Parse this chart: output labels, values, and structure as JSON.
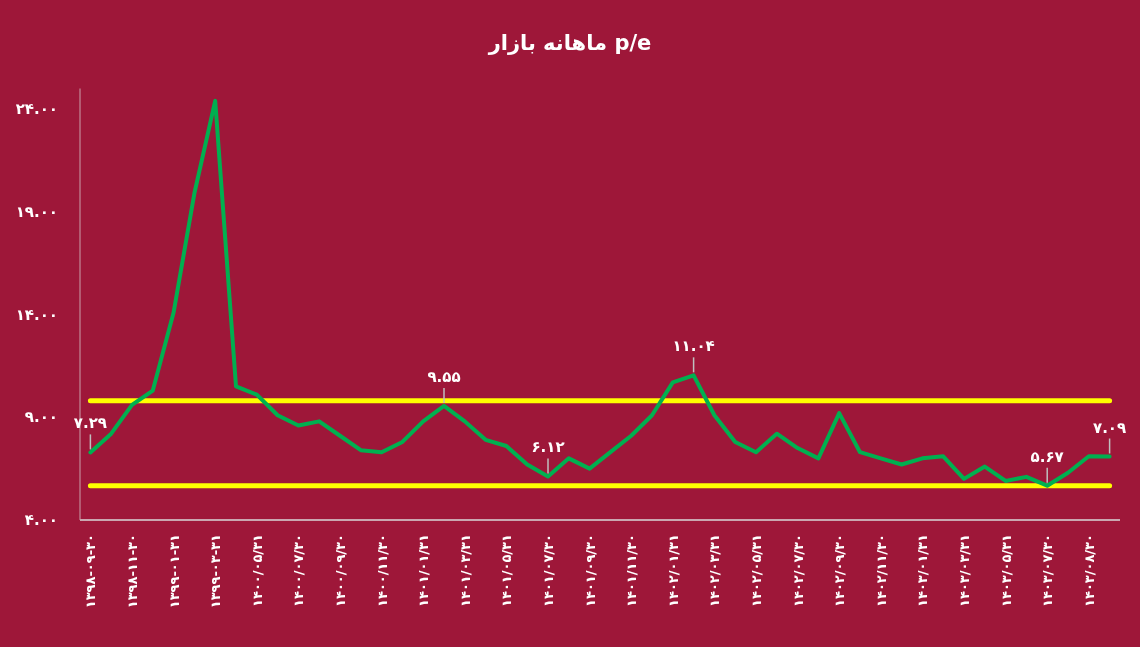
{
  "chart_data": {
    "type": "line",
    "title": "p/e ماهانه بازار",
    "categories": [
      "۱۳۹۸-۰۹-۳۰",
      null,
      "۱۳۹۸-۱۱-۳۰",
      null,
      "۱۳۹۹-۰۱-۳۱",
      null,
      "۱۳۹۹-۰۳-۳۱",
      null,
      "۱۴۰۰/۰۵/۳۱",
      null,
      "۱۴۰۰/۰۷/۳۰",
      null,
      "۱۴۰۰/۰۹/۳۰",
      null,
      "۱۴۰۰/۱۱/۳۰",
      null,
      "۱۴۰۱/۰۱/۳۱",
      null,
      "۱۴۰۱/۰۳/۳۱",
      null,
      "۱۴۰۱/۰۵/۳۱",
      null,
      "۱۴۰۱/۰۷/۳۰",
      null,
      "۱۴۰۱/۰۹/۳۰",
      null,
      "۱۴۰۱/۱۱/۳۰",
      null,
      "۱۴۰۲/۰۱/۳۱",
      null,
      "۱۴۰۲/۰۳/۳۱",
      null,
      "۱۴۰۲/۰۵/۳۱",
      null,
      "۱۴۰۲/۰۷/۳۰",
      null,
      "۱۴۰۲/۰۹/۳۰",
      null,
      "۱۴۰۲/۱۱/۳۰",
      null,
      "۱۴۰۳/۰۱/۳۱",
      null,
      "۱۴۰۳/۰۳/۳۱",
      null,
      "۱۴۰۳/۰۵/۳۱",
      null,
      "۱۴۰۳/۰۷/۳۰",
      null,
      "۱۴۰۳/۰۸/۳۰",
      null
    ],
    "series": [
      {
        "color": "#00b050",
        "values": [
          7.29,
          8.2,
          9.6,
          10.3,
          14.1,
          19.9,
          24.4,
          10.5,
          10.1,
          9.1,
          8.6,
          8.8,
          8.1,
          7.4,
          7.3,
          7.8,
          8.8,
          9.55,
          8.8,
          7.9,
          7.6,
          6.7,
          6.12,
          7.0,
          6.5,
          7.3,
          8.1,
          9.1,
          10.7,
          11.04,
          9.1,
          7.8,
          7.3,
          8.2,
          7.5,
          7.0,
          9.2,
          7.3,
          7.0,
          6.7,
          7.0,
          7.1,
          6.0,
          6.6,
          5.9,
          6.1,
          5.67,
          6.3,
          7.1,
          7.09
        ],
        "value_labels": [
          "۷.۲۹",
          null,
          null,
          null,
          null,
          null,
          null,
          null,
          null,
          null,
          null,
          null,
          null,
          null,
          null,
          null,
          null,
          "۹.۵۵",
          null,
          null,
          null,
          null,
          "۶.۱۲",
          null,
          null,
          null,
          null,
          null,
          null,
          "۱۱.۰۴",
          null,
          null,
          null,
          null,
          null,
          null,
          null,
          null,
          null,
          null,
          null,
          null,
          null,
          null,
          null,
          null,
          "۵.۶۷",
          null,
          null,
          "۷.۰۹"
        ]
      }
    ],
    "ylim": [
      4,
      25
    ],
    "yticks": [
      {
        "value": 4,
        "label": "۴.۰۰"
      },
      {
        "value": 9,
        "label": "۹.۰۰"
      },
      {
        "value": 14,
        "label": "۱۴.۰۰"
      },
      {
        "value": 19,
        "label": "۱۹.۰۰"
      },
      {
        "value": 24,
        "label": "۲۴.۰۰"
      }
    ],
    "ref_lines": [
      {
        "axis": "y",
        "value": 9.8,
        "color": "#ffff00"
      },
      {
        "axis": "y",
        "value": 5.67,
        "color": "#ffff00"
      }
    ],
    "marker": "none"
  }
}
